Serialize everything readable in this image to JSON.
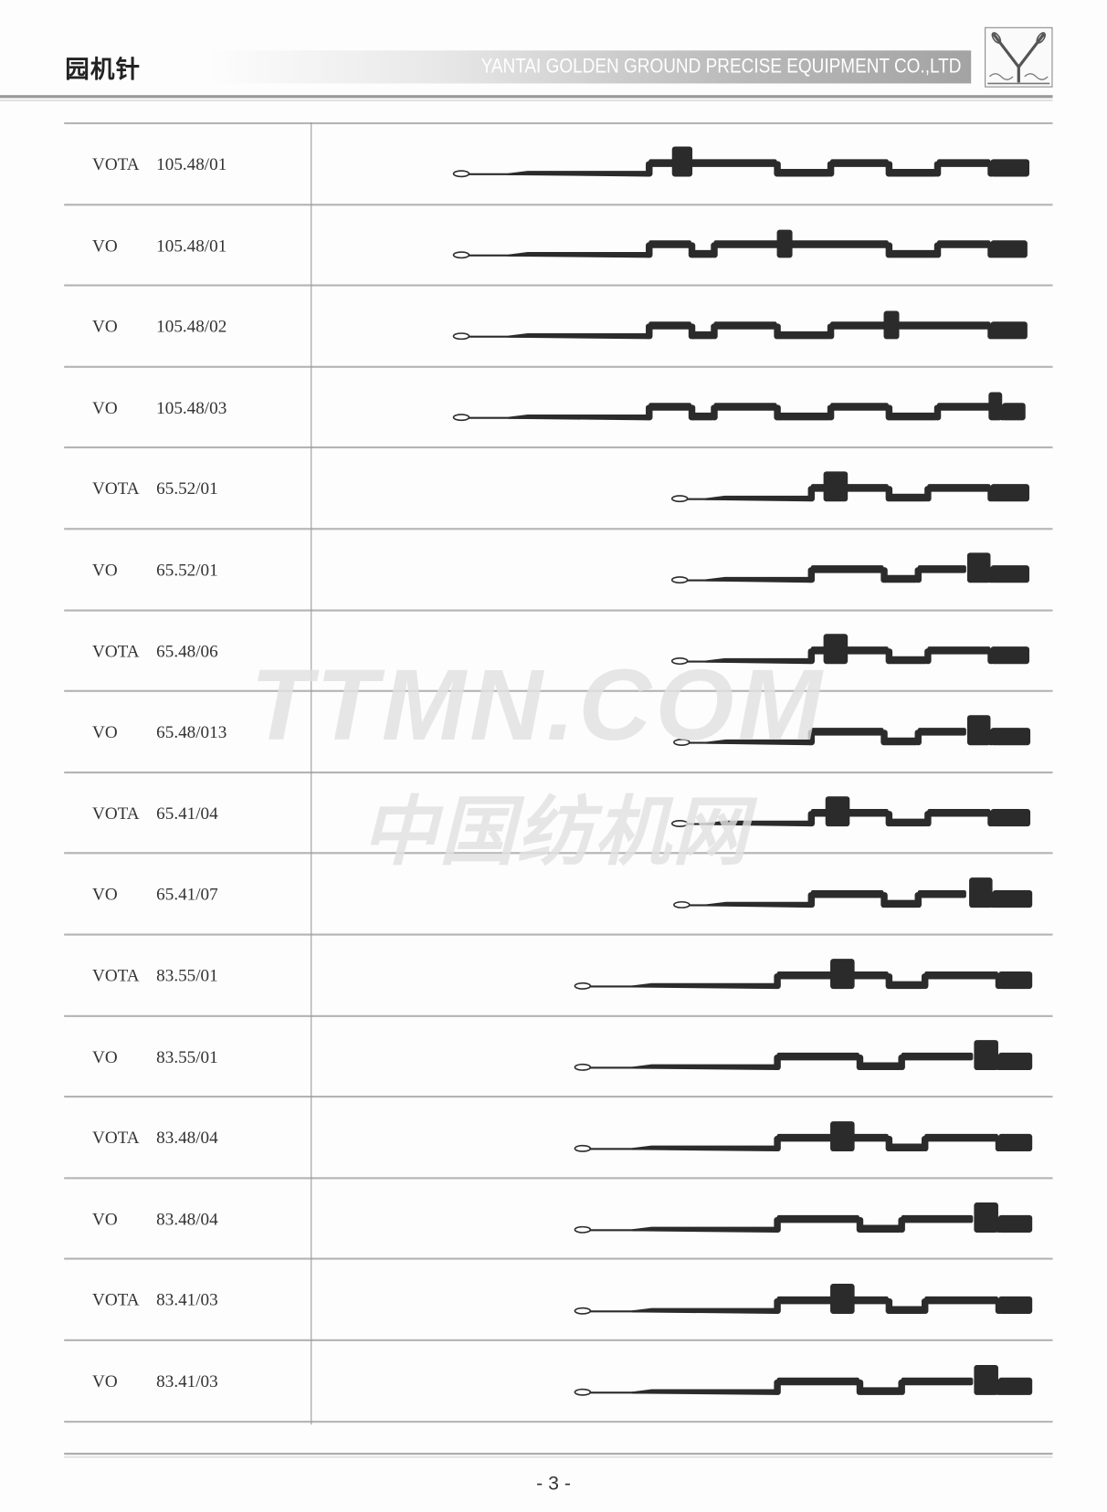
{
  "header": {
    "title": "园机针",
    "company": "YANTAI GOLDEN GROUND PRECISE EQUIPMENT CO.,LTD",
    "logo": "Y-needle-logo"
  },
  "table": {
    "rows": [
      {
        "series": "VOTA",
        "code": "105.48/01"
      },
      {
        "series": "VO",
        "code": "105.48/01"
      },
      {
        "series": "VO",
        "code": "105.48/02"
      },
      {
        "series": "VO",
        "code": "105.48/03"
      },
      {
        "series": "VOTA",
        "code": "65.52/01"
      },
      {
        "series": "VO",
        "code": "65.52/01"
      },
      {
        "series": "VOTA",
        "code": "65.48/06"
      },
      {
        "series": "VO",
        "code": "65.48/013"
      },
      {
        "series": "VOTA",
        "code": "65.41/04"
      },
      {
        "series": "VO",
        "code": "65.41/07"
      },
      {
        "series": "VOTA",
        "code": "83.55/01"
      },
      {
        "series": "VO",
        "code": "83.55/01"
      },
      {
        "series": "VOTA",
        "code": "83.48/04"
      },
      {
        "series": "VO",
        "code": "83.48/04"
      },
      {
        "series": "VOTA",
        "code": "83.41/03"
      },
      {
        "series": "VO",
        "code": "83.41/03"
      }
    ]
  },
  "watermark": {
    "line1": "TTMN.COM",
    "line2": "中国纺机网"
  },
  "footer": {
    "page": "- 3 -"
  },
  "colors": {
    "needle": "#2b2b2b",
    "rule": "#b4b4b4",
    "header_band": "#a3a3a3"
  }
}
